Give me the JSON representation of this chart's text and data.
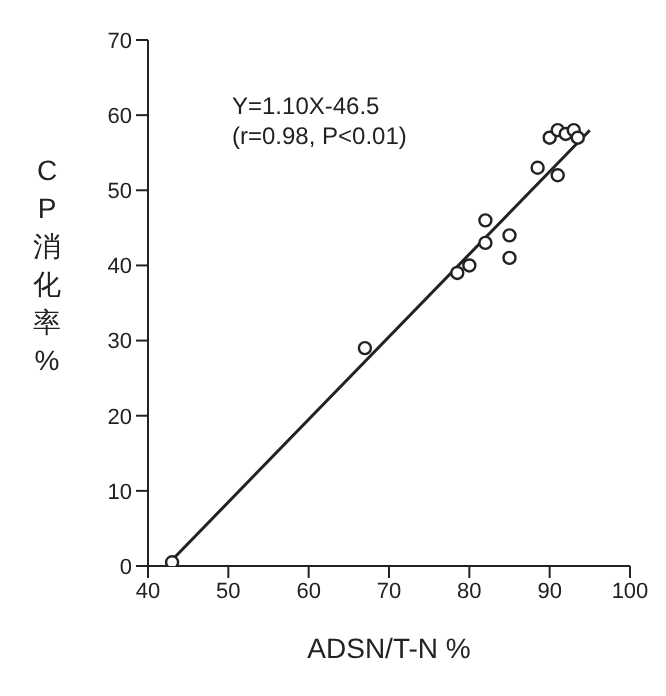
{
  "chart_data": {
    "type": "scatter",
    "xlabel": "ADSN/T-N %",
    "ylabel": "CP消化率 %",
    "annotations": [
      "Y=1.10X-46.5",
      "(r=0.98, P<0.01)"
    ],
    "series": [
      {
        "marker": "circle",
        "color": "#222222",
        "x": [
          43,
          67,
          78.5,
          80,
          82,
          82,
          85,
          85,
          88.5,
          91,
          90,
          91,
          92,
          93,
          93.5
        ],
        "values": [
          0.5,
          29,
          39,
          40,
          46,
          43,
          44,
          41,
          53,
          52,
          57,
          58,
          57.5,
          58,
          57
        ]
      },
      {
        "type": "line",
        "color": "#222222",
        "x": [
          43,
          95
        ],
        "values": [
          0.8,
          58
        ]
      }
    ],
    "xlim": [
      40,
      100
    ],
    "xticks": [
      40,
      50,
      60,
      70,
      80,
      90,
      100
    ],
    "ylim": [
      0,
      70
    ],
    "yticks": [
      0,
      10,
      20,
      30,
      40,
      50,
      60,
      70
    ],
    "grid": false,
    "legend": false,
    "line_style": "solid"
  }
}
